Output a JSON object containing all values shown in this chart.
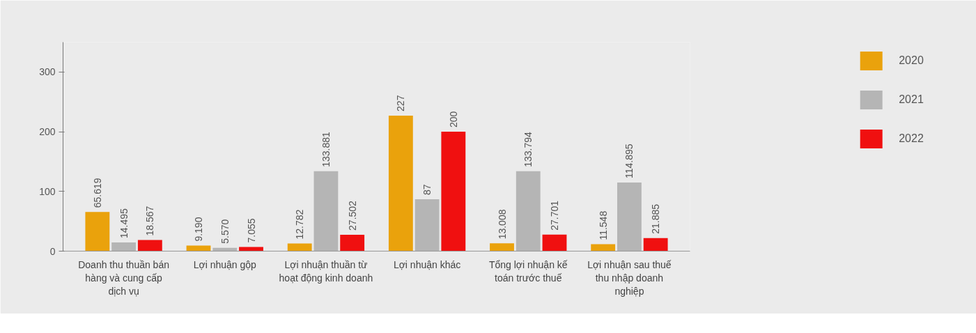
{
  "chart_data": {
    "type": "bar",
    "categories": [
      "Doanh thu thuần bán hàng và cung cấp dịch vụ",
      "Lợi nhuận gộp",
      "Lợi nhuận thuần từ hoạt động kinh doanh",
      "Lợi nhuận khác",
      "Tổng lợi nhuận kế toán trước thuế",
      "Lợi nhuận sau thuế thu nhập doanh nghiệp"
    ],
    "series": [
      {
        "name": "2020",
        "color": "#eaa20c",
        "values": [
          65.619,
          9.19,
          12.782,
          227,
          13.008,
          11.548
        ],
        "value_labels": [
          "65.619",
          "9.190",
          "12.782",
          "227",
          "13.008",
          "11.548"
        ]
      },
      {
        "name": "2021",
        "color": "#b5b5b5",
        "values": [
          14.495,
          5.57,
          133.881,
          87,
          133.794,
          114.895
        ],
        "value_labels": [
          "14.495",
          "5.570",
          "133.881",
          "87",
          "133.794",
          "114.895"
        ]
      },
      {
        "name": "2022",
        "color": "#f01010",
        "values": [
          18.567,
          7.055,
          27.502,
          200,
          27.701,
          21.885
        ],
        "value_labels": [
          "18.567",
          "7.055",
          "27.502",
          "200",
          "27.701",
          "21.885"
        ]
      }
    ],
    "ylim": [
      0,
      350
    ],
    "yticks": [
      0,
      100,
      200,
      300
    ],
    "grid": false,
    "legend": "top right"
  }
}
